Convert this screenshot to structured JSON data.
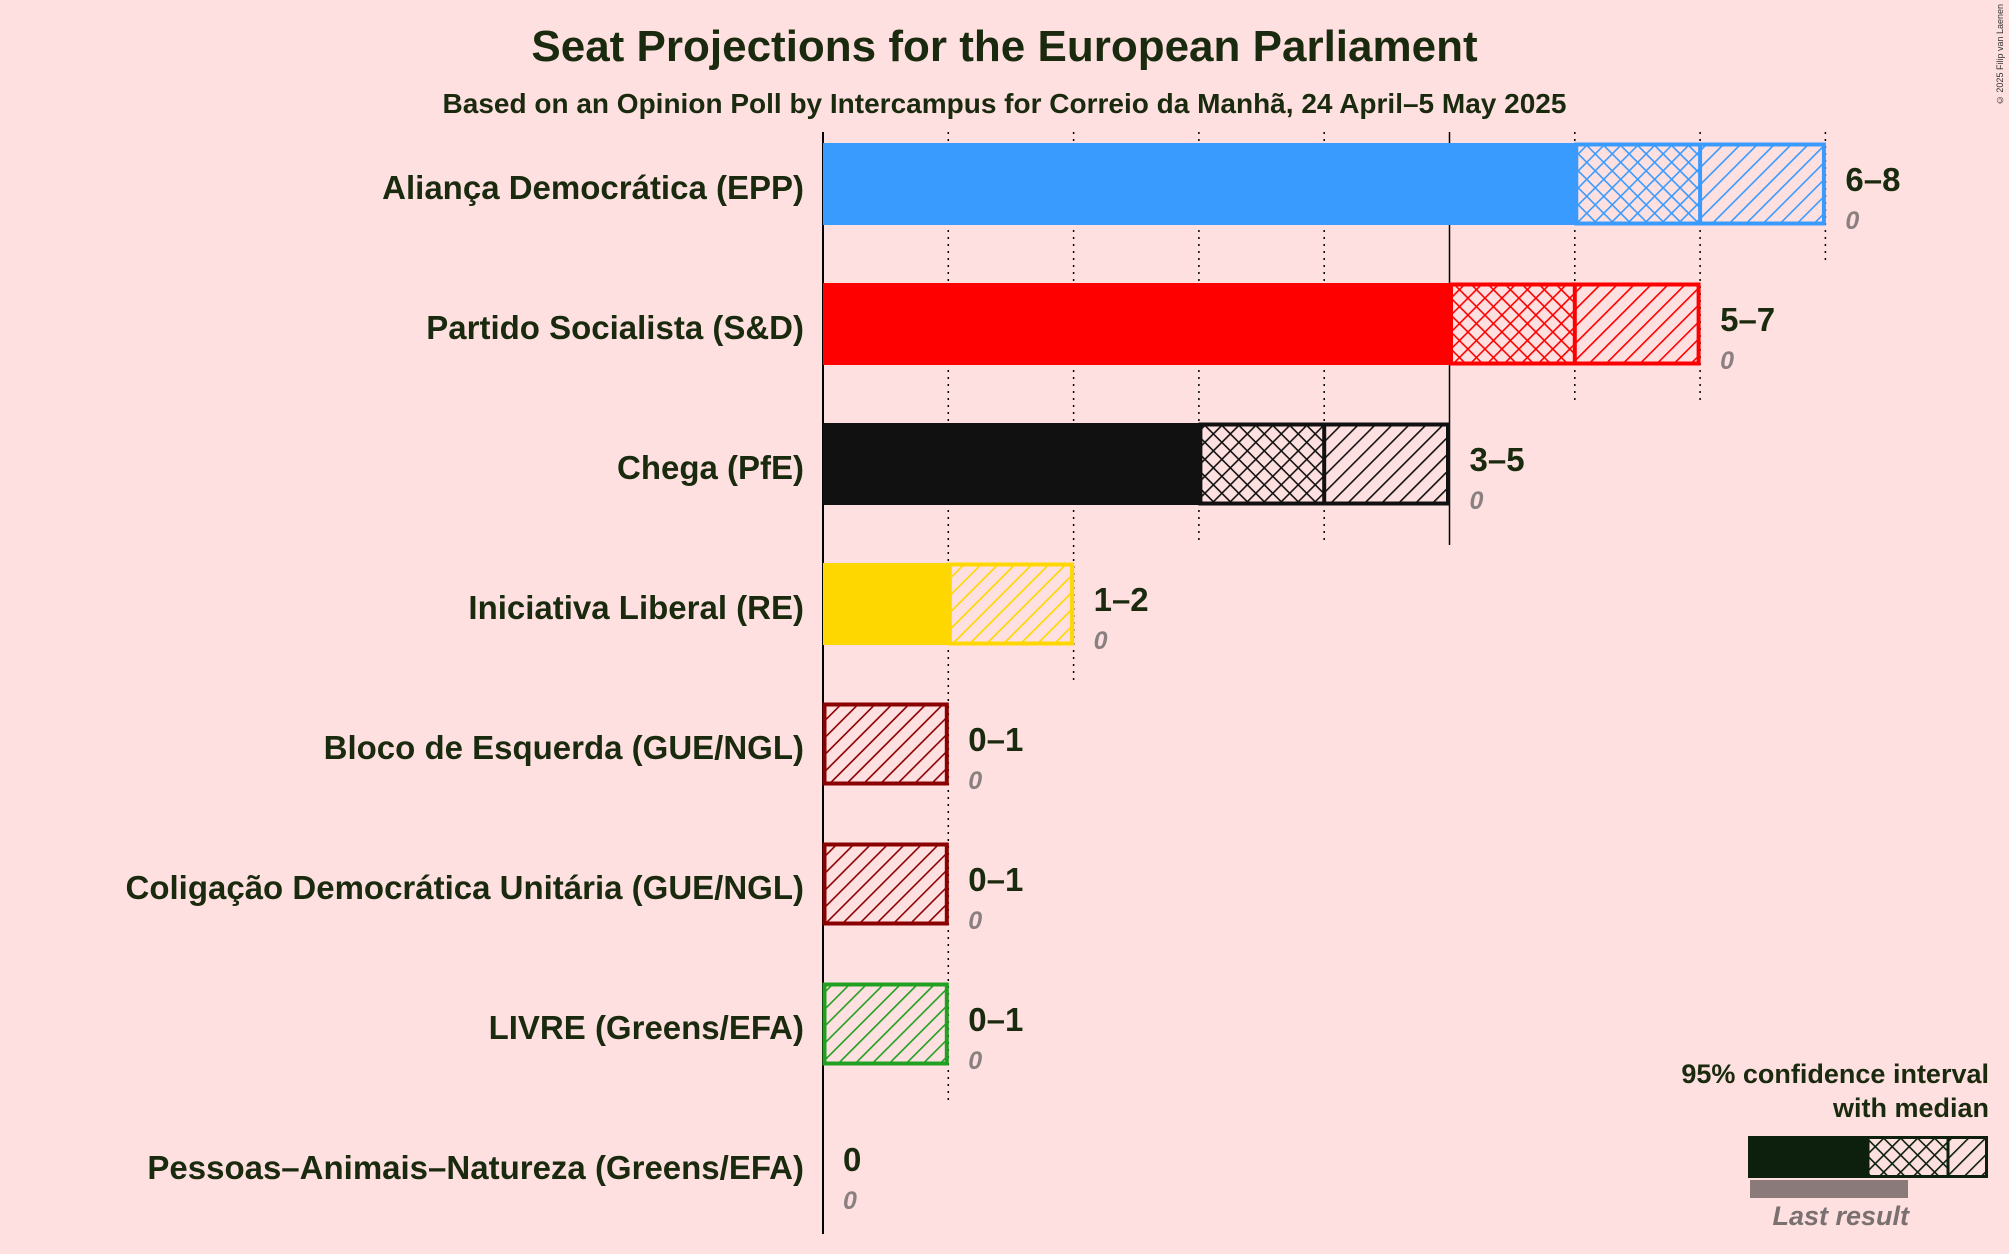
{
  "title": "Seat Projections for the European Parliament",
  "subtitle": "Based on an Opinion Poll by Intercampus for Correio da Manhã, 24 April–5 May 2025",
  "copyright": "© 2025 Filip van Laenen",
  "legend": {
    "line1": "95% confidence interval",
    "line2": "with median",
    "last_result": "Last result"
  },
  "chart_data": {
    "type": "bar",
    "orientation": "horizontal",
    "xlim": [
      0,
      8
    ],
    "grid": true,
    "title": "Seat Projections for the European Parliament",
    "subtitle": "Based on an Opinion Poll by Intercampus for Correio da Manhã, 24 April–5 May 2025",
    "legend_position": "bottom-right",
    "parties": [
      {
        "name": "Aliança Democrática (EPP)",
        "low": 6,
        "median": 7,
        "high": 8,
        "label": "6–8",
        "last": "0",
        "color": "#3A9BFF"
      },
      {
        "name": "Partido Socialista (S&D)",
        "low": 5,
        "median": 6,
        "high": 7,
        "label": "5–7",
        "last": "0",
        "color": "#FF0000"
      },
      {
        "name": "Chega (PfE)",
        "low": 3,
        "median": 4,
        "high": 5,
        "label": "3–5",
        "last": "0",
        "color": "#111111"
      },
      {
        "name": "Iniciativa Liberal (RE)",
        "low": 1,
        "median": 1,
        "high": 2,
        "label": "1–2",
        "last": "0",
        "color": "#FFD700"
      },
      {
        "name": "Bloco de Esquerda (GUE/NGL)",
        "low": 0,
        "median": 0,
        "high": 1,
        "label": "0–1",
        "last": "0",
        "color": "#8B0000"
      },
      {
        "name": "Coligação Democrática Unitária (GUE/NGL)",
        "low": 0,
        "median": 0,
        "high": 1,
        "label": "0–1",
        "last": "0",
        "color": "#8B0000"
      },
      {
        "name": "LIVRE (Greens/EFA)",
        "low": 0,
        "median": 0,
        "high": 1,
        "label": "0–1",
        "last": "0",
        "color": "#22A022"
      },
      {
        "name": "Pessoas–Animais–Natureza (Greens/EFA)",
        "low": 0,
        "median": 0,
        "high": 0,
        "label": "0",
        "last": "0",
        "color": "#1a3a1a"
      }
    ]
  }
}
